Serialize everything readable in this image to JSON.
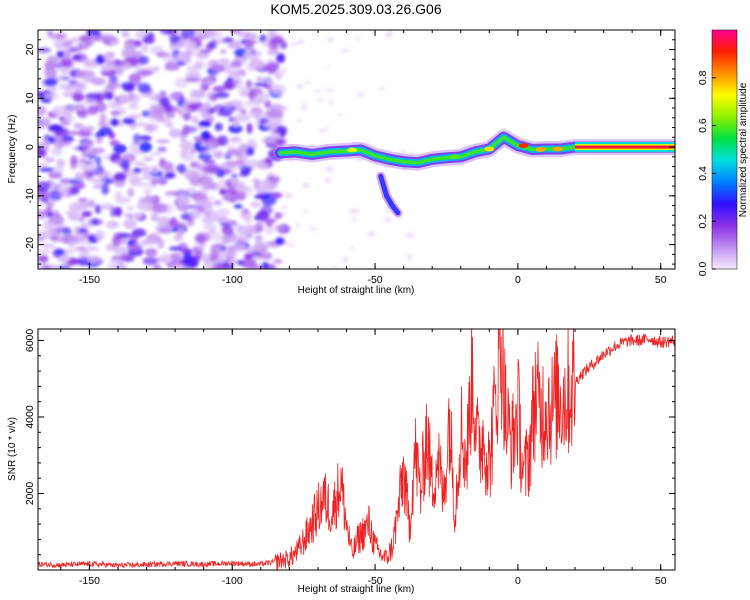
{
  "chart_data": [
    {
      "type": "heatmap",
      "title": "KOM5.2025.309.03.26.G06",
      "xlabel": "Height of straight line (km)",
      "ylabel": "Frequency (Hz)",
      "xlim": [
        -168,
        55
      ],
      "ylim": [
        -25,
        24
      ],
      "xticks": [
        -150,
        -100,
        -50,
        0,
        50
      ],
      "yticks": [
        -20,
        -10,
        0,
        10,
        20
      ],
      "colorbar": {
        "label": "Normalized spectral amplitude",
        "range": [
          0.0,
          1.0
        ],
        "ticks": [
          0.0,
          0.2,
          0.4,
          0.6,
          0.8
        ],
        "tick_labels": [
          "0.0",
          "0.2",
          "0.4",
          "0.6",
          "0.8"
        ],
        "colors": [
          "#f4eaff",
          "#c090f0",
          "#8a30e8",
          "#3010ff",
          "#0080ff",
          "#00e0e0",
          "#00e040",
          "#90f000",
          "#ffff00",
          "#ff9000",
          "#ff2000",
          "#ff0090"
        ]
      },
      "noise_region": {
        "x_range": [
          -168,
          -82
        ],
        "y_range": [
          -25,
          24
        ]
      },
      "ridge": [
        {
          "x": -83,
          "y": -1.2
        },
        {
          "x": -78,
          "y": -1.0
        },
        {
          "x": -72,
          "y": -1.5
        },
        {
          "x": -66,
          "y": -1.0
        },
        {
          "x": -60,
          "y": -0.8
        },
        {
          "x": -55,
          "y": -0.6
        },
        {
          "x": -50,
          "y": -1.8
        },
        {
          "x": -45,
          "y": -2.5
        },
        {
          "x": -40,
          "y": -3.0
        },
        {
          "x": -35,
          "y": -3.2
        },
        {
          "x": -30,
          "y": -2.5
        },
        {
          "x": -25,
          "y": -2.2
        },
        {
          "x": -20,
          "y": -2.0
        },
        {
          "x": -15,
          "y": -1.0
        },
        {
          "x": -10,
          "y": -0.4
        },
        {
          "x": -5,
          "y": 2.0
        },
        {
          "x": 0,
          "y": 0.3
        },
        {
          "x": 5,
          "y": -0.5
        },
        {
          "x": 10,
          "y": -0.4
        },
        {
          "x": 15,
          "y": -0.4
        },
        {
          "x": 20,
          "y": 0.0
        },
        {
          "x": 55,
          "y": 0.0
        }
      ],
      "branch": [
        {
          "x": -48,
          "y": -6
        },
        {
          "x": -46,
          "y": -10
        },
        {
          "x": -44,
          "y": -12
        },
        {
          "x": -42,
          "y": -13.5
        }
      ]
    },
    {
      "type": "line",
      "xlabel": "Height of straight line (km)",
      "ylabel": "SNR (10 * v/v)",
      "xlim": [
        -168,
        55
      ],
      "ylim": [
        0,
        6300
      ],
      "xticks": [
        -150,
        -100,
        -50,
        0,
        50
      ],
      "yticks": [
        2000,
        4000,
        6000
      ],
      "color": "#ee2222",
      "series": [
        {
          "name": "SNR",
          "x": [
            -168,
            -160,
            -150,
            -140,
            -130,
            -120,
            -110,
            -100,
            -95,
            -90,
            -85,
            -80,
            -77,
            -74,
            -71,
            -68,
            -65,
            -62,
            -60,
            -58,
            -56,
            -54,
            -52,
            -50,
            -48,
            -46,
            -44,
            -42,
            -40,
            -38,
            -36,
            -34,
            -32,
            -30,
            -28,
            -26,
            -24,
            -22,
            -20,
            -18,
            -16,
            -14,
            -12,
            -10,
            -8,
            -6,
            -4,
            -2,
            0,
            2,
            4,
            6,
            8,
            10,
            12,
            14,
            16,
            18,
            20,
            22,
            25,
            28,
            31,
            34,
            37,
            40,
            43,
            46,
            50,
            55
          ],
          "values": [
            150,
            130,
            160,
            120,
            140,
            170,
            150,
            180,
            160,
            150,
            220,
            300,
            500,
            900,
            1400,
            1900,
            1500,
            2300,
            1200,
            400,
            800,
            1000,
            1200,
            600,
            400,
            300,
            600,
            1500,
            2600,
            1100,
            3100,
            2000,
            3600,
            2200,
            3000,
            1800,
            4100,
            1500,
            3800,
            2800,
            5300,
            3200,
            3500,
            2700,
            4300,
            6200,
            3800,
            3300,
            4200,
            2400,
            3100,
            4600,
            4100,
            4400,
            4200,
            4600,
            4500,
            4700,
            4900,
            5100,
            5300,
            5500,
            5700,
            5850,
            5950,
            6000,
            6000,
            6050,
            5950,
            6000
          ]
        }
      ]
    }
  ]
}
